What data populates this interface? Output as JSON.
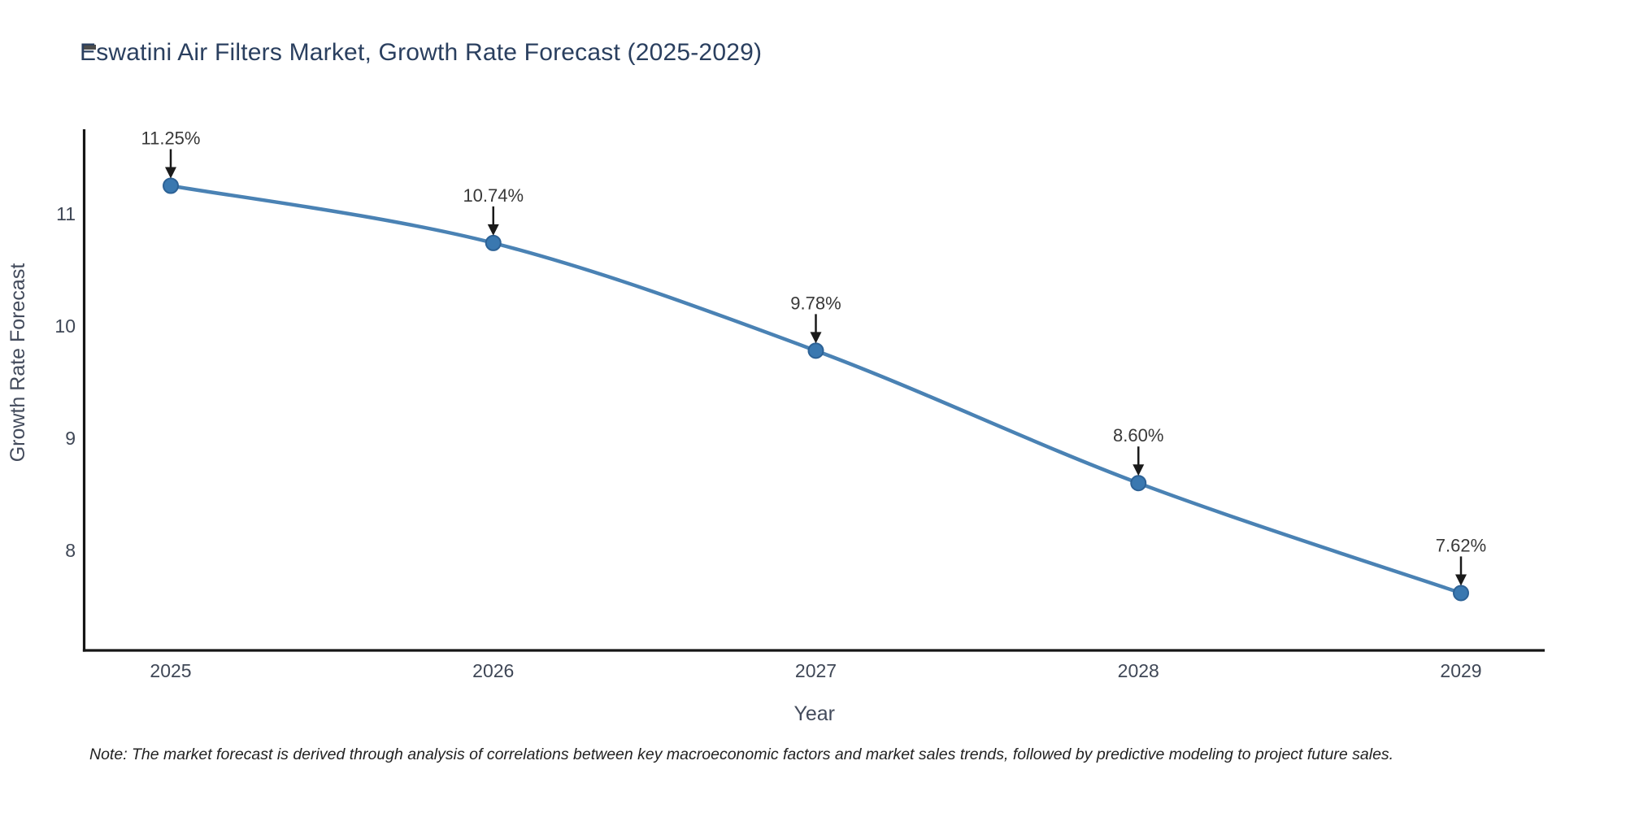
{
  "page": {
    "title": "Eswatini Air Filters Market, Growth Rate Forecast (2025-2029)",
    "note": "Note: The market forecast is derived through analysis of correlations between key macroeconomic factors and market sales trends, followed by predictive modeling to project future sales."
  },
  "chart_data": {
    "type": "line",
    "title": "Eswatini Air Filters Market, Growth Rate Forecast (2025-2029)",
    "xlabel": "Year",
    "ylabel": "Growth Rate Forecast",
    "x": [
      2025,
      2026,
      2027,
      2028,
      2029
    ],
    "values": [
      11.25,
      10.74,
      9.78,
      8.6,
      7.62
    ],
    "point_labels": [
      "11.25%",
      "10.74%",
      "9.78%",
      "8.60%",
      "7.62%"
    ],
    "x_tick_labels": [
      "2025",
      "2026",
      "2027",
      "2028",
      "2029"
    ],
    "y_tick_values": [
      8,
      9,
      10,
      11
    ],
    "ylim": [
      7.11,
      11.75
    ],
    "line_shape": "spline",
    "grid": false,
    "legend_position": "none",
    "marker_style": "circle-with-down-arrow-annotations",
    "colors": {
      "line": "#4a82b4",
      "marker": "#3a78b0",
      "marker_edge": "#2d6296",
      "arrow": "#1a1a1a",
      "axis_line": "#161616",
      "title_text": "#2a3f5f",
      "tick_text": "#3f4756",
      "axis_title_text": "#434b5c",
      "annotation_text": "#383838",
      "note_text": "#222222",
      "background": "#ffffff"
    }
  }
}
